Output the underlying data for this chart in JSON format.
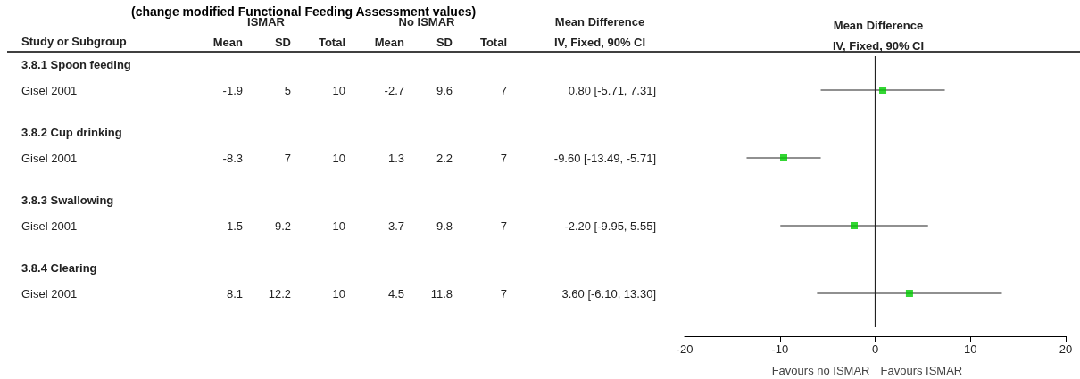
{
  "chart_data": [
    {
      "type": "other",
      "title": "(change modified Functional Feeding Assessment values)",
      "xlabel": "Study or Subgroup",
      "categories": [
        "3.8.1 Spoon feeding",
        "Gisel 2001",
        "3.8.2 Cup drinking",
        "Gisel 2001",
        "3.8.3 Swallowing",
        "Gisel 2001",
        "3.8.4 Clearing",
        "Gisel 2001"
      ],
      "annotations": [
        "ISMAR",
        "No ISMAR",
        "IV, Fixed, 90% CI"
      ],
      "data_labels": true,
      "series": [
        {
          "name": "Mean",
          "values": [
            null,
            -1.9,
            null,
            -8.3,
            null,
            1.5,
            null,
            8.1
          ]
        },
        {
          "name": "SD",
          "values": [
            null,
            5,
            null,
            7,
            null,
            9.2,
            null,
            12.2
          ]
        },
        {
          "name": "Total",
          "values": [
            null,
            10,
            null,
            10,
            null,
            10,
            null,
            10
          ]
        },
        {
          "name": "Mean",
          "values": [
            null,
            -2.7,
            null,
            1.3,
            null,
            3.7,
            null,
            4.5
          ]
        },
        {
          "name": "SD",
          "values": [
            null,
            9.6,
            null,
            2.2,
            null,
            9.8,
            null,
            11.8
          ]
        },
        {
          "name": "Total",
          "values": [
            null,
            7,
            null,
            7,
            null,
            7,
            null,
            7
          ]
        },
        {
          "name": "Mean Difference",
          "values": [
            null,
            0.8,
            null,
            -9.6,
            null,
            -2.2,
            null,
            3.6
          ],
          "value_labels": [
            null,
            "0.80 [-5.71, 7.31]",
            null,
            "-9.60 [-13.49, -5.71]",
            null,
            "-2.20 [-9.95, 5.55]",
            null,
            "3.60 [-6.10, 13.30]"
          ]
        }
      ]
    },
    {
      "type": "scatter",
      "orientation": "horizontal",
      "title": "Mean Difference",
      "subtitle": "IV, Fixed, 90% CI",
      "categories": [
        null,
        null,
        null,
        null
      ],
      "values": [
        0.8,
        -9.6,
        -2.2,
        3.6
      ],
      "errors": [
        [
          -5.71,
          7.31
        ],
        [
          -13.49,
          -5.71
        ],
        [
          -9.95,
          5.55
        ],
        [
          -6.1,
          13.3
        ]
      ],
      "color": "#00cc00",
      "marker": "square",
      "xlim": [
        -20,
        20
      ],
      "xticks": [
        -20,
        -10,
        0,
        10,
        20
      ],
      "tick_labels": "x",
      "grid": false,
      "ref_lines": [
        {
          "axis": "x",
          "value": 0
        }
      ],
      "annotations": [
        "Favours no ISMAR",
        "Favours ISMAR"
      ]
    }
  ]
}
